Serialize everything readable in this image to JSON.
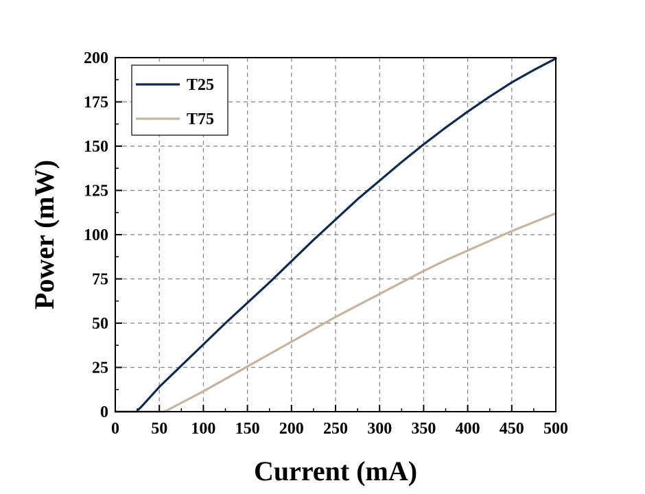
{
  "chart_data": {
    "type": "line",
    "title": "",
    "xlabel": "Current (mA)",
    "ylabel": "Power (mW)",
    "xlim": [
      0,
      500
    ],
    "ylim": [
      0,
      200
    ],
    "xticks": [
      0,
      50,
      100,
      150,
      200,
      250,
      300,
      350,
      400,
      450,
      500
    ],
    "yticks": [
      0,
      25,
      50,
      75,
      100,
      125,
      150,
      175,
      200
    ],
    "grid": true,
    "legend_position": "top-left",
    "series": [
      {
        "name": "T25",
        "color": "#0d2a52",
        "x": [
          0,
          10,
          20,
          24,
          25,
          30,
          50,
          75,
          100,
          125,
          150,
          175,
          200,
          225,
          250,
          275,
          300,
          325,
          350,
          375,
          400,
          425,
          450,
          475,
          500
        ],
        "y": [
          0,
          0,
          0,
          0,
          0.5,
          3,
          14,
          26,
          38,
          50,
          61.5,
          73,
          85,
          97,
          108.5,
          120,
          130.5,
          141,
          151,
          160.5,
          169.5,
          178,
          186,
          193,
          199.5
        ]
      },
      {
        "name": "T75",
        "color": "#c9b39e",
        "x": [
          0,
          25,
          50,
          55,
          60,
          75,
          100,
          125,
          150,
          175,
          200,
          225,
          250,
          275,
          300,
          325,
          350,
          375,
          400,
          425,
          450,
          475,
          500
        ],
        "y": [
          0,
          0,
          0,
          0,
          1,
          5,
          11.5,
          18.5,
          25.5,
          32.5,
          39.5,
          46.5,
          53.5,
          60,
          66.5,
          73,
          79.5,
          85.5,
          91,
          96.5,
          102,
          107,
          112
        ]
      }
    ]
  }
}
